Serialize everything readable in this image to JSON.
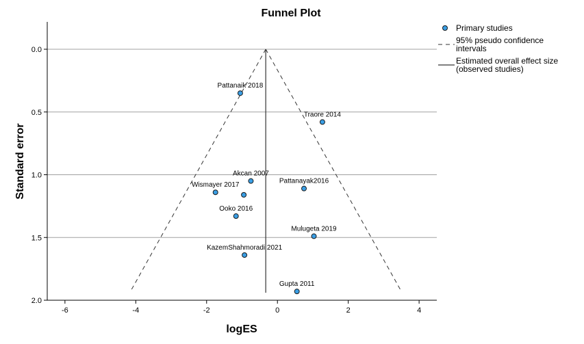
{
  "chart_data": {
    "type": "scatter",
    "title": "Funnel Plot",
    "xlabel": "logES",
    "ylabel": "Standard error",
    "xlim": [
      -6.5,
      4.5
    ],
    "ylim": [
      0,
      2
    ],
    "y_reversed": true,
    "x_ticks": [
      "-6",
      "-4",
      "-2",
      "0",
      "2",
      "4"
    ],
    "y_ticks": [
      "0.0",
      "0.5",
      "1.0",
      "1.5",
      "2.0"
    ],
    "grid": "horizontal",
    "legend_position": "top-right",
    "colors": {
      "point_fill": "#3a9ee4",
      "point_stroke": "#1a1a1a",
      "gridline": "#a0a0a0"
    },
    "series": [
      {
        "name": "Primary studies",
        "points": [
          {
            "label": "Pattanaik 2018",
            "x": -1.05,
            "y": 0.35
          },
          {
            "label": "Traore 2014",
            "x": 1.27,
            "y": 0.58
          },
          {
            "label": "Akcan 2007",
            "x": -0.75,
            "y": 1.05
          },
          {
            "label": "Pattanayak2016",
            "x": 0.75,
            "y": 1.11
          },
          {
            "label": "Wismayer 2017",
            "x": -1.75,
            "y": 1.14
          },
          {
            "label": "",
            "x": -0.95,
            "y": 1.16
          },
          {
            "label": "Ooko 2016",
            "x": -1.17,
            "y": 1.33
          },
          {
            "label": "Mulugeta 2019",
            "x": 1.03,
            "y": 1.49
          },
          {
            "label": "KazemShahmoradi 2021",
            "x": -0.93,
            "y": 1.64
          },
          {
            "label": "Gupta 2011",
            "x": 0.55,
            "y": 1.93
          }
        ]
      }
    ],
    "pseudo_ci": {
      "apex": [
        -0.33,
        0.0
      ],
      "left_base": [
        -4.15,
        1.93
      ],
      "right_base": [
        3.5,
        1.93
      ]
    },
    "overall_effect": {
      "x": -0.33,
      "y_range": [
        0.0,
        1.94
      ]
    },
    "legend": [
      {
        "key": "points",
        "text": [
          "Primary studies"
        ]
      },
      {
        "key": "ci",
        "text": [
          "95% pseudo confidence",
          "intervals"
        ]
      },
      {
        "key": "effect",
        "text": [
          "Estimated overall effect size",
          "(observed studies)"
        ]
      }
    ]
  }
}
